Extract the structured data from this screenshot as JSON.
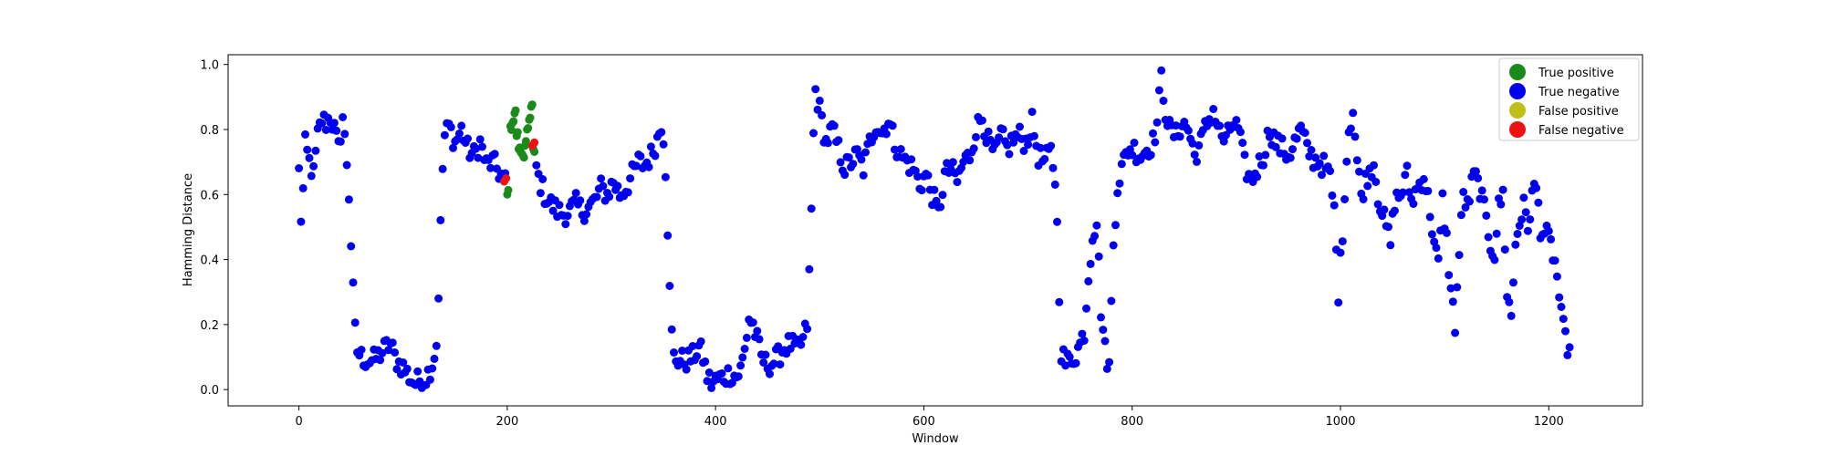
{
  "chart_data": {
    "type": "scatter",
    "xlabel": "Window",
    "ylabel": "Hamming Distance",
    "xlim": [
      -68,
      1290
    ],
    "ylim": [
      -0.05,
      1.03
    ],
    "xticks": [
      0,
      200,
      400,
      600,
      800,
      1000,
      1200
    ],
    "yticks": [
      0.0,
      0.2,
      0.4,
      0.6,
      0.8,
      1.0
    ],
    "grid": false,
    "legend_position": "top-right",
    "colors": {
      "true_positive": "#1a8a1a",
      "true_negative": "#0000ee",
      "false_positive": "#bfbf1a",
      "false_negative": "#ee1111"
    },
    "legend": [
      {
        "key": "true_positive",
        "label": "True positive"
      },
      {
        "key": "true_negative",
        "label": "True negative"
      },
      {
        "key": "false_positive",
        "label": "False positive"
      },
      {
        "key": "false_negative",
        "label": "False negative"
      }
    ],
    "series_anchors": {
      "true_negative": [
        [
          0,
          0.67
        ],
        [
          2,
          0.53
        ],
        [
          4,
          0.61
        ],
        [
          6,
          0.75
        ],
        [
          10,
          0.7
        ],
        [
          14,
          0.66
        ],
        [
          18,
          0.78
        ],
        [
          22,
          0.83
        ],
        [
          26,
          0.82
        ],
        [
          30,
          0.84
        ],
        [
          34,
          0.8
        ],
        [
          38,
          0.74
        ],
        [
          42,
          0.84
        ],
        [
          46,
          0.7
        ],
        [
          48,
          0.6
        ],
        [
          50,
          0.45
        ],
        [
          52,
          0.3
        ],
        [
          54,
          0.18
        ],
        [
          56,
          0.12
        ],
        [
          60,
          0.1
        ],
        [
          66,
          0.09
        ],
        [
          72,
          0.09
        ],
        [
          78,
          0.11
        ],
        [
          84,
          0.13
        ],
        [
          88,
          0.14
        ],
        [
          92,
          0.1
        ],
        [
          96,
          0.08
        ],
        [
          100,
          0.07
        ],
        [
          104,
          0.05
        ],
        [
          108,
          0.03
        ],
        [
          112,
          0.02
        ],
        [
          116,
          0.03
        ],
        [
          120,
          0.03
        ],
        [
          124,
          0.05
        ],
        [
          128,
          0.08
        ],
        [
          132,
          0.14
        ],
        [
          134,
          0.3
        ],
        [
          136,
          0.5
        ],
        [
          138,
          0.68
        ],
        [
          140,
          0.78
        ],
        [
          144,
          0.81
        ],
        [
          150,
          0.76
        ],
        [
          156,
          0.8
        ],
        [
          162,
          0.74
        ],
        [
          168,
          0.72
        ],
        [
          174,
          0.76
        ],
        [
          180,
          0.69
        ],
        [
          186,
          0.7
        ],
        [
          192,
          0.67
        ],
        [
          198,
          0.64
        ],
        [
          226,
          0.72
        ],
        [
          230,
          0.65
        ],
        [
          236,
          0.6
        ],
        [
          242,
          0.57
        ],
        [
          248,
          0.55
        ],
        [
          254,
          0.54
        ],
        [
          260,
          0.55
        ],
        [
          266,
          0.57
        ],
        [
          272,
          0.55
        ],
        [
          278,
          0.56
        ],
        [
          284,
          0.58
        ],
        [
          290,
          0.62
        ],
        [
          296,
          0.6
        ],
        [
          302,
          0.64
        ],
        [
          308,
          0.6
        ],
        [
          314,
          0.62
        ],
        [
          320,
          0.66
        ],
        [
          326,
          0.7
        ],
        [
          332,
          0.69
        ],
        [
          338,
          0.72
        ],
        [
          344,
          0.77
        ],
        [
          348,
          0.82
        ],
        [
          350,
          0.78
        ],
        [
          352,
          0.68
        ],
        [
          354,
          0.5
        ],
        [
          356,
          0.3
        ],
        [
          358,
          0.17
        ],
        [
          360,
          0.1
        ],
        [
          366,
          0.09
        ],
        [
          372,
          0.09
        ],
        [
          378,
          0.1
        ],
        [
          384,
          0.13
        ],
        [
          388,
          0.1
        ],
        [
          392,
          0.04
        ],
        [
          396,
          0.02
        ],
        [
          402,
          0.03
        ],
        [
          408,
          0.04
        ],
        [
          414,
          0.05
        ],
        [
          420,
          0.04
        ],
        [
          424,
          0.06
        ],
        [
          428,
          0.12
        ],
        [
          432,
          0.22
        ],
        [
          436,
          0.2
        ],
        [
          440,
          0.15
        ],
        [
          444,
          0.1
        ],
        [
          448,
          0.08
        ],
        [
          454,
          0.08
        ],
        [
          460,
          0.1
        ],
        [
          466,
          0.13
        ],
        [
          472,
          0.14
        ],
        [
          478,
          0.12
        ],
        [
          484,
          0.15
        ],
        [
          488,
          0.2
        ],
        [
          490,
          0.35
        ],
        [
          492,
          0.55
        ],
        [
          494,
          0.78
        ],
        [
          496,
          0.92
        ],
        [
          500,
          0.86
        ],
        [
          506,
          0.76
        ],
        [
          512,
          0.8
        ],
        [
          518,
          0.74
        ],
        [
          524,
          0.68
        ],
        [
          530,
          0.7
        ],
        [
          536,
          0.72
        ],
        [
          542,
          0.68
        ],
        [
          548,
          0.76
        ],
        [
          554,
          0.82
        ],
        [
          560,
          0.79
        ],
        [
          566,
          0.83
        ],
        [
          572,
          0.76
        ],
        [
          578,
          0.72
        ],
        [
          584,
          0.7
        ],
        [
          590,
          0.68
        ],
        [
          596,
          0.63
        ],
        [
          602,
          0.66
        ],
        [
          608,
          0.6
        ],
        [
          614,
          0.54
        ],
        [
          620,
          0.66
        ],
        [
          626,
          0.68
        ],
        [
          632,
          0.64
        ],
        [
          638,
          0.7
        ],
        [
          644,
          0.72
        ],
        [
          650,
          0.8
        ],
        [
          656,
          0.84
        ],
        [
          662,
          0.76
        ],
        [
          668,
          0.72
        ],
        [
          674,
          0.78
        ],
        [
          680,
          0.74
        ],
        [
          686,
          0.77
        ],
        [
          692,
          0.78
        ],
        [
          698,
          0.76
        ],
        [
          704,
          0.82
        ],
        [
          710,
          0.72
        ],
        [
          716,
          0.7
        ],
        [
          722,
          0.73
        ],
        [
          726,
          0.65
        ],
        [
          728,
          0.5
        ],
        [
          730,
          0.3
        ],
        [
          732,
          0.12
        ],
        [
          736,
          0.08
        ],
        [
          740,
          0.09
        ],
        [
          746,
          0.11
        ],
        [
          750,
          0.14
        ],
        [
          754,
          0.18
        ],
        [
          758,
          0.35
        ],
        [
          762,
          0.48
        ],
        [
          766,
          0.52
        ],
        [
          770,
          0.25
        ],
        [
          774,
          0.12
        ],
        [
          778,
          0.07
        ],
        [
          782,
          0.45
        ],
        [
          786,
          0.63
        ],
        [
          790,
          0.68
        ],
        [
          796,
          0.74
        ],
        [
          802,
          0.74
        ],
        [
          808,
          0.72
        ],
        [
          814,
          0.74
        ],
        [
          820,
          0.76
        ],
        [
          824,
          0.82
        ],
        [
          828,
          0.96
        ],
        [
          832,
          0.86
        ],
        [
          836,
          0.8
        ],
        [
          842,
          0.78
        ],
        [
          848,
          0.82
        ],
        [
          854,
          0.8
        ],
        [
          860,
          0.72
        ],
        [
          866,
          0.76
        ],
        [
          872,
          0.82
        ],
        [
          878,
          0.86
        ],
        [
          884,
          0.79
        ],
        [
          890,
          0.76
        ],
        [
          896,
          0.82
        ],
        [
          902,
          0.8
        ],
        [
          908,
          0.69
        ],
        [
          914,
          0.64
        ],
        [
          920,
          0.68
        ],
        [
          926,
          0.72
        ],
        [
          932,
          0.8
        ],
        [
          938,
          0.76
        ],
        [
          944,
          0.74
        ],
        [
          950,
          0.72
        ],
        [
          956,
          0.76
        ],
        [
          962,
          0.8
        ],
        [
          968,
          0.74
        ],
        [
          974,
          0.71
        ],
        [
          980,
          0.7
        ],
        [
          986,
          0.68
        ],
        [
          990,
          0.65
        ],
        [
          994,
          0.55
        ],
        [
          998,
          0.3
        ],
        [
          1002,
          0.48
        ],
        [
          1004,
          0.62
        ],
        [
          1008,
          0.8
        ],
        [
          1012,
          0.86
        ],
        [
          1016,
          0.7
        ],
        [
          1020,
          0.6
        ],
        [
          1026,
          0.66
        ],
        [
          1032,
          0.7
        ],
        [
          1036,
          0.6
        ],
        [
          1042,
          0.52
        ],
        [
          1048,
          0.45
        ],
        [
          1052,
          0.58
        ],
        [
          1058,
          0.6
        ],
        [
          1064,
          0.66
        ],
        [
          1068,
          0.58
        ],
        [
          1074,
          0.62
        ],
        [
          1080,
          0.66
        ],
        [
          1086,
          0.55
        ],
        [
          1090,
          0.45
        ],
        [
          1094,
          0.38
        ],
        [
          1098,
          0.58
        ],
        [
          1102,
          0.46
        ],
        [
          1106,
          0.3
        ],
        [
          1110,
          0.2
        ],
        [
          1114,
          0.42
        ],
        [
          1118,
          0.6
        ],
        [
          1122,
          0.56
        ],
        [
          1128,
          0.66
        ],
        [
          1134,
          0.62
        ],
        [
          1138,
          0.55
        ],
        [
          1144,
          0.45
        ],
        [
          1148,
          0.42
        ],
        [
          1152,
          0.56
        ],
        [
          1156,
          0.6
        ],
        [
          1160,
          0.3
        ],
        [
          1164,
          0.22
        ],
        [
          1168,
          0.45
        ],
        [
          1172,
          0.52
        ],
        [
          1176,
          0.56
        ],
        [
          1180,
          0.5
        ],
        [
          1184,
          0.6
        ],
        [
          1188,
          0.62
        ],
        [
          1192,
          0.5
        ],
        [
          1196,
          0.48
        ],
        [
          1200,
          0.46
        ],
        [
          1204,
          0.42
        ],
        [
          1208,
          0.35
        ],
        [
          1212,
          0.22
        ],
        [
          1216,
          0.15
        ],
        [
          1220,
          0.13
        ]
      ],
      "true_positive": [
        [
          200,
          0.6
        ],
        [
          203,
          0.81
        ],
        [
          205,
          0.82
        ],
        [
          207,
          0.85
        ],
        [
          209,
          0.78
        ],
        [
          211,
          0.74
        ],
        [
          213,
          0.73
        ],
        [
          215,
          0.72
        ],
        [
          217,
          0.75
        ],
        [
          219,
          0.8
        ],
        [
          221,
          0.83
        ],
        [
          223,
          0.87
        ],
        [
          225,
          0.74
        ]
      ],
      "false_positive": [],
      "false_negative": [
        [
          197,
          0.64
        ],
        [
          199,
          0.65
        ],
        [
          224,
          0.75
        ],
        [
          226,
          0.76
        ]
      ]
    },
    "sampling": {
      "step": 2,
      "noise": 0.035
    }
  }
}
